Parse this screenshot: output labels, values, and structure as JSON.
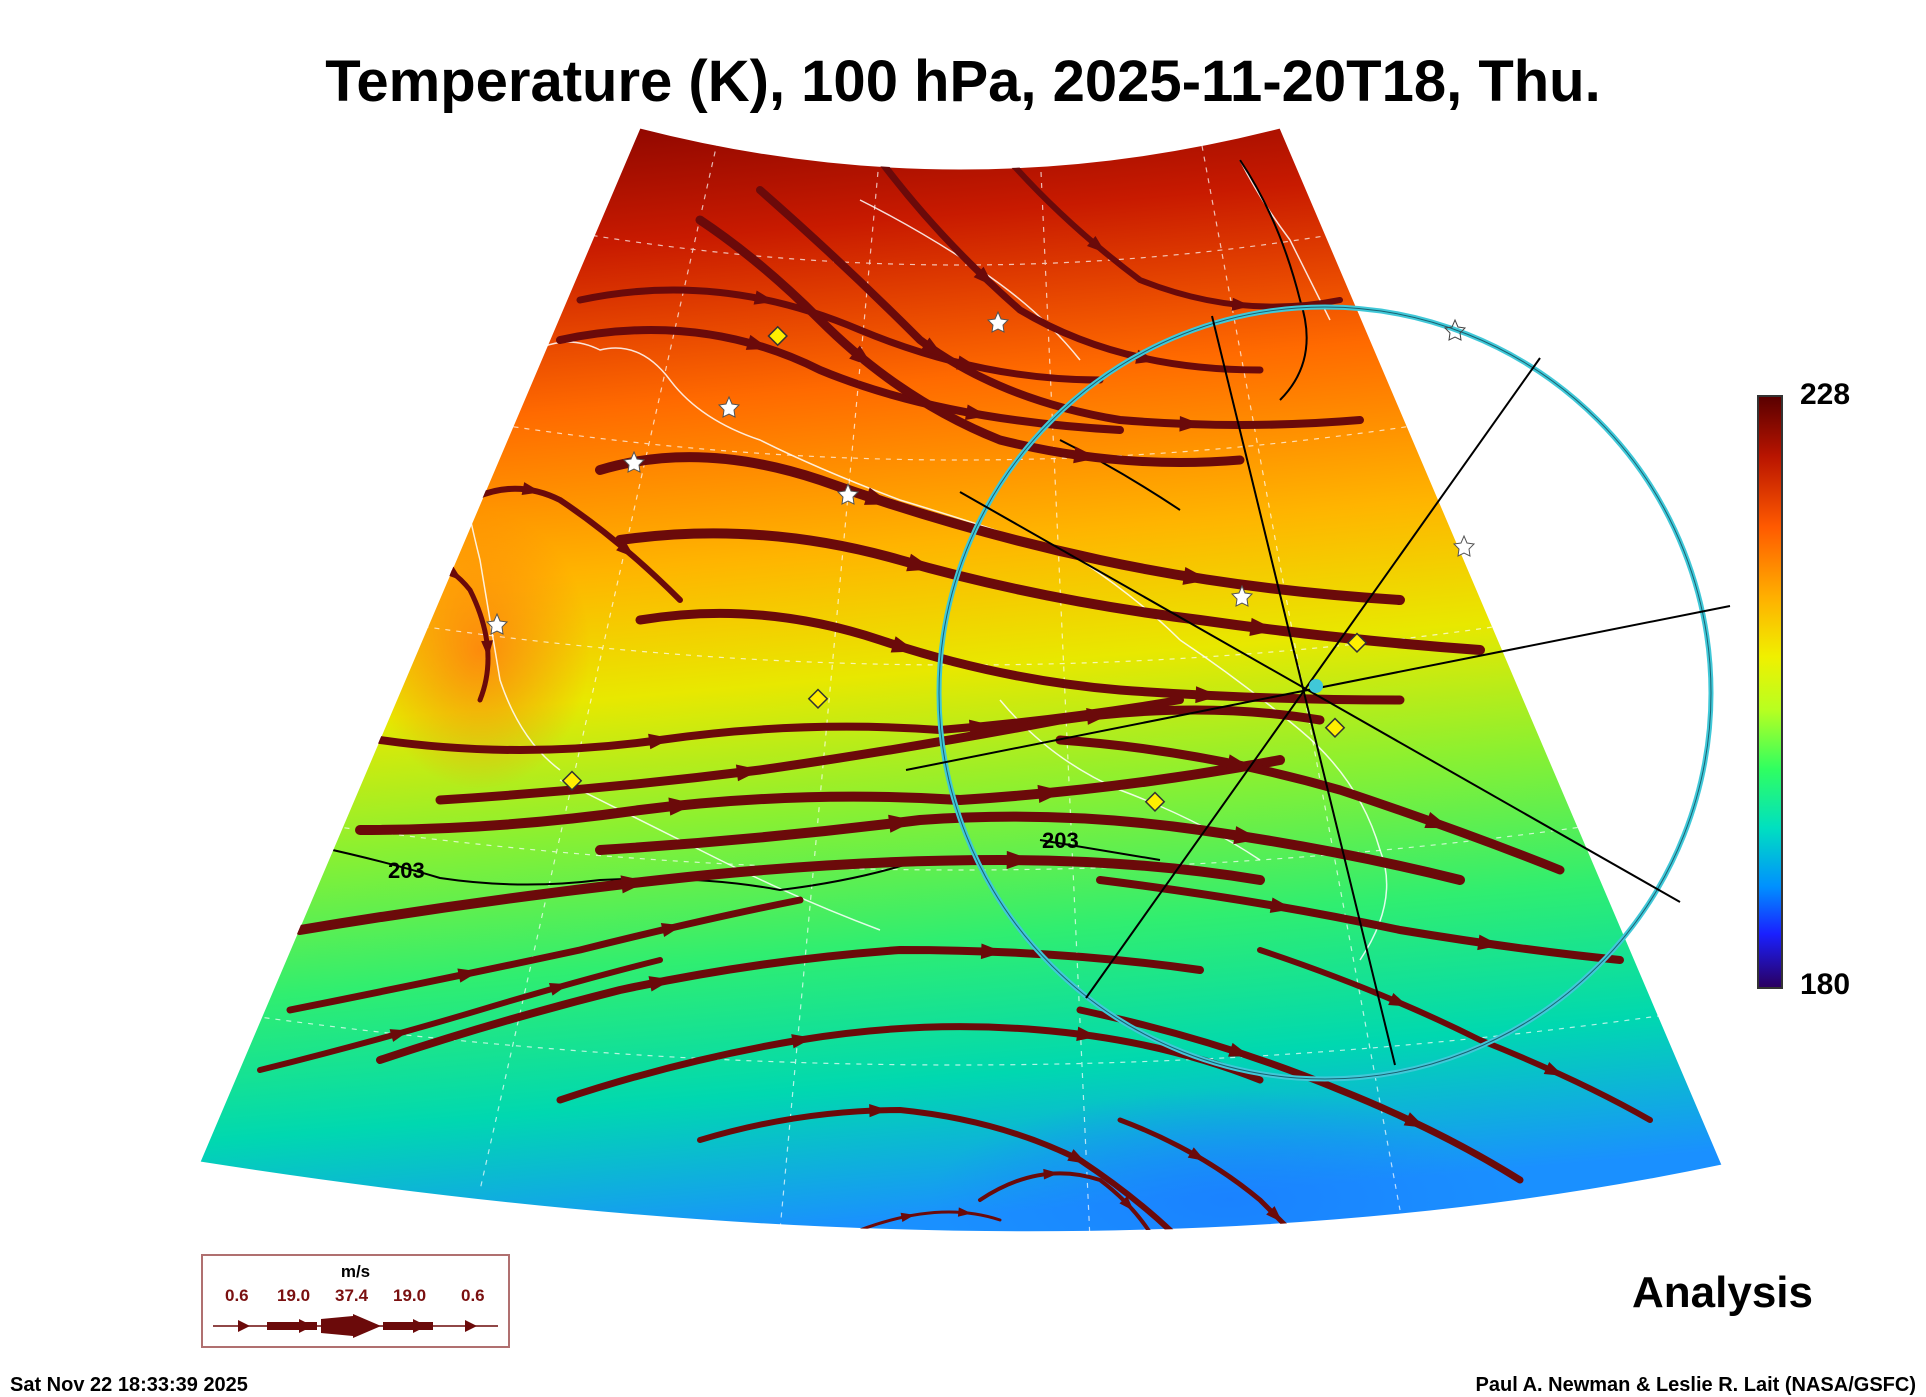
{
  "title": "Temperature (K), 100 hPa, 2025-11-20T18, Thu.",
  "colorbar": {
    "max_label": "228",
    "min_label": "180"
  },
  "contour_labels": [
    "203",
    "203"
  ],
  "legend": {
    "unit": "m/s",
    "values": [
      "0.6",
      "19.0",
      "37.4",
      "19.0",
      "0.6"
    ]
  },
  "analysis_label": "Analysis",
  "footer": {
    "timestamp": "Sat Nov 22 18:33:39 2025",
    "credit": "Paul A. Newman & Leslie R. Lait (NASA/GSFC)"
  },
  "colors": {
    "streamline": "#6b0a0a",
    "circle": "#40c8d8",
    "diamond": "#ffee00",
    "warm": "#d83a00",
    "cold": "#0090ff"
  },
  "icons": [
    "star-marker-icon",
    "diamond-marker-icon",
    "arrow-icon"
  ]
}
